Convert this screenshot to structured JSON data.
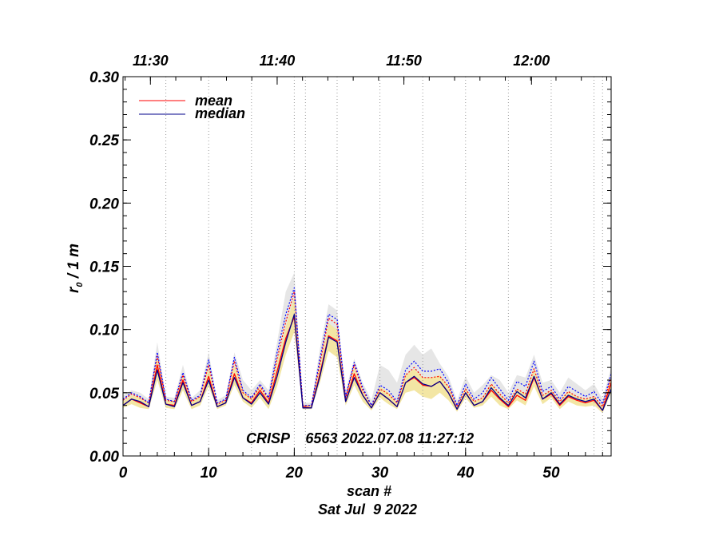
{
  "chart_data": {
    "type": "line",
    "title": "",
    "xlabel": "scan #",
    "ylabel": "r₀ / 1 m",
    "ylabel_main": "r",
    "ylabel_sub": "0",
    "ylabel_rest": " / 1 m",
    "xlim": [
      0,
      57
    ],
    "ylim": [
      0,
      0.3
    ],
    "x_ticks": [
      0,
      10,
      20,
      30,
      40,
      50
    ],
    "y_ticks": [
      0.0,
      0.05,
      0.1,
      0.15,
      0.2,
      0.25,
      0.3
    ],
    "y_tick_labels": [
      "0.00",
      "0.05",
      "0.10",
      "0.15",
      "0.20",
      "0.25",
      "0.30"
    ],
    "top_axis": {
      "labels": [
        "11:30",
        "11:40",
        "11:50",
        "12:00"
      ],
      "positions_scan": [
        3.2,
        18.0,
        32.8,
        47.7
      ]
    },
    "vertical_gridlines_scan": [
      5,
      10,
      15,
      20,
      21.3,
      25,
      30,
      35,
      40,
      45,
      50,
      55,
      56
    ],
    "legend": {
      "position": "top-left",
      "entries": [
        "mean",
        "median"
      ]
    },
    "series": [
      {
        "name": "mean",
        "color": "#ff0000",
        "x": [
          0,
          1,
          2,
          3,
          4,
          5,
          6,
          7,
          8,
          9,
          10,
          11,
          12,
          13,
          14,
          15,
          16,
          17,
          18,
          19,
          20,
          21,
          22,
          23,
          24,
          25,
          26,
          27,
          28,
          29,
          30,
          31,
          32,
          33,
          34,
          35,
          36,
          37,
          38,
          39,
          40,
          41,
          42,
          43,
          44,
          45,
          46,
          47,
          48,
          49,
          50,
          51,
          52,
          53,
          54,
          55,
          56,
          57
        ],
        "values": [
          0.04,
          0.045,
          0.042,
          0.039,
          0.072,
          0.041,
          0.04,
          0.06,
          0.04,
          0.043,
          0.063,
          0.039,
          0.042,
          0.065,
          0.046,
          0.042,
          0.052,
          0.042,
          0.067,
          0.093,
          0.11,
          0.039,
          0.038,
          0.065,
          0.095,
          0.091,
          0.043,
          0.065,
          0.048,
          0.038,
          0.05,
          0.045,
          0.039,
          0.058,
          0.062,
          0.056,
          0.055,
          0.059,
          0.05,
          0.037,
          0.05,
          0.04,
          0.043,
          0.052,
          0.045,
          0.039,
          0.048,
          0.044,
          0.062,
          0.045,
          0.049,
          0.04,
          0.047,
          0.044,
          0.042,
          0.044,
          0.036,
          0.058
        ]
      },
      {
        "name": "median",
        "color": "#00008b",
        "x": [
          0,
          1,
          2,
          3,
          4,
          5,
          6,
          7,
          8,
          9,
          10,
          11,
          12,
          13,
          14,
          15,
          16,
          17,
          18,
          19,
          20,
          21,
          22,
          23,
          24,
          25,
          26,
          27,
          28,
          29,
          30,
          31,
          32,
          33,
          34,
          35,
          36,
          37,
          38,
          39,
          40,
          41,
          42,
          43,
          44,
          45,
          46,
          47,
          48,
          49,
          50,
          51,
          52,
          53,
          54,
          55,
          56,
          57
        ],
        "values": [
          0.04,
          0.045,
          0.043,
          0.039,
          0.068,
          0.041,
          0.039,
          0.058,
          0.04,
          0.043,
          0.06,
          0.039,
          0.042,
          0.062,
          0.046,
          0.041,
          0.05,
          0.041,
          0.063,
          0.09,
          0.112,
          0.038,
          0.038,
          0.063,
          0.094,
          0.09,
          0.043,
          0.062,
          0.048,
          0.038,
          0.05,
          0.045,
          0.039,
          0.058,
          0.063,
          0.057,
          0.055,
          0.059,
          0.05,
          0.037,
          0.05,
          0.04,
          0.043,
          0.054,
          0.046,
          0.04,
          0.051,
          0.046,
          0.063,
          0.045,
          0.05,
          0.041,
          0.048,
          0.045,
          0.043,
          0.045,
          0.036,
          0.053
        ]
      },
      {
        "name": "mean + sigma (dotted)",
        "color": "#ff0000",
        "dash": true,
        "x": [
          0,
          1,
          2,
          3,
          4,
          5,
          6,
          7,
          8,
          9,
          10,
          11,
          12,
          13,
          14,
          15,
          16,
          17,
          18,
          19,
          20,
          21,
          22,
          23,
          24,
          25,
          26,
          27,
          28,
          29,
          30,
          31,
          32,
          33,
          34,
          35,
          36,
          37,
          38,
          39,
          40,
          41,
          42,
          43,
          44,
          45,
          46,
          47,
          48,
          49,
          50,
          51,
          52,
          53,
          54,
          55,
          56,
          57
        ],
        "values": [
          0.044,
          0.049,
          0.046,
          0.042,
          0.079,
          0.044,
          0.043,
          0.064,
          0.043,
          0.047,
          0.072,
          0.041,
          0.044,
          0.075,
          0.05,
          0.045,
          0.055,
          0.045,
          0.077,
          0.106,
          0.13,
          0.04,
          0.04,
          0.073,
          0.109,
          0.104,
          0.046,
          0.072,
          0.052,
          0.04,
          0.053,
          0.049,
          0.042,
          0.064,
          0.07,
          0.062,
          0.062,
          0.063,
          0.055,
          0.039,
          0.053,
          0.043,
          0.046,
          0.057,
          0.049,
          0.042,
          0.053,
          0.049,
          0.069,
          0.048,
          0.052,
          0.043,
          0.051,
          0.047,
          0.045,
          0.047,
          0.039,
          0.062
        ]
      },
      {
        "name": "median + sigma (dotted)",
        "color": "#0000ff",
        "dash": true,
        "x": [
          0,
          1,
          2,
          3,
          4,
          5,
          6,
          7,
          8,
          9,
          10,
          11,
          12,
          13,
          14,
          15,
          16,
          17,
          18,
          19,
          20,
          21,
          22,
          23,
          24,
          25,
          26,
          27,
          28,
          29,
          30,
          31,
          32,
          33,
          34,
          35,
          36,
          37,
          38,
          39,
          40,
          41,
          42,
          43,
          44,
          45,
          46,
          47,
          48,
          49,
          50,
          51,
          52,
          53,
          54,
          55,
          56,
          57
        ],
        "values": [
          0.045,
          0.05,
          0.047,
          0.042,
          0.082,
          0.045,
          0.043,
          0.066,
          0.044,
          0.048,
          0.076,
          0.042,
          0.045,
          0.078,
          0.052,
          0.046,
          0.057,
          0.046,
          0.082,
          0.112,
          0.133,
          0.04,
          0.04,
          0.077,
          0.112,
          0.108,
          0.047,
          0.074,
          0.054,
          0.04,
          0.056,
          0.052,
          0.043,
          0.068,
          0.075,
          0.067,
          0.067,
          0.069,
          0.058,
          0.04,
          0.057,
          0.045,
          0.05,
          0.062,
          0.053,
          0.044,
          0.059,
          0.055,
          0.075,
          0.051,
          0.055,
          0.045,
          0.055,
          0.051,
          0.047,
          0.051,
          0.041,
          0.065
        ]
      }
    ],
    "bands": [
      {
        "name": "median range",
        "color": "#e6e6e6",
        "x": [
          0,
          1,
          2,
          3,
          4,
          5,
          6,
          7,
          8,
          9,
          10,
          11,
          12,
          13,
          14,
          15,
          16,
          17,
          18,
          19,
          20,
          21,
          22,
          23,
          24,
          25,
          26,
          27,
          28,
          29,
          30,
          31,
          32,
          33,
          34,
          35,
          36,
          37,
          38,
          39,
          40,
          41,
          42,
          43,
          44,
          45,
          46,
          47,
          48,
          49,
          50,
          51,
          52,
          53,
          54,
          55,
          56,
          57
        ],
        "low": [
          0.04,
          0.044,
          0.042,
          0.039,
          0.065,
          0.04,
          0.039,
          0.056,
          0.04,
          0.042,
          0.058,
          0.039,
          0.041,
          0.06,
          0.045,
          0.04,
          0.049,
          0.04,
          0.06,
          0.088,
          0.11,
          0.038,
          0.038,
          0.061,
          0.092,
          0.088,
          0.042,
          0.06,
          0.047,
          0.038,
          0.049,
          0.044,
          0.039,
          0.057,
          0.061,
          0.055,
          0.054,
          0.058,
          0.049,
          0.037,
          0.049,
          0.04,
          0.042,
          0.052,
          0.045,
          0.039,
          0.049,
          0.045,
          0.061,
          0.044,
          0.049,
          0.04,
          0.047,
          0.044,
          0.042,
          0.044,
          0.036,
          0.052
        ],
        "high": [
          0.048,
          0.052,
          0.05,
          0.045,
          0.09,
          0.047,
          0.046,
          0.072,
          0.046,
          0.052,
          0.082,
          0.044,
          0.048,
          0.082,
          0.06,
          0.052,
          0.06,
          0.052,
          0.09,
          0.13,
          0.145,
          0.042,
          0.042,
          0.085,
          0.12,
          0.115,
          0.052,
          0.077,
          0.058,
          0.044,
          0.072,
          0.068,
          0.058,
          0.08,
          0.088,
          0.08,
          0.085,
          0.073,
          0.063,
          0.044,
          0.063,
          0.05,
          0.056,
          0.064,
          0.06,
          0.05,
          0.064,
          0.062,
          0.08,
          0.058,
          0.06,
          0.05,
          0.062,
          0.057,
          0.052,
          0.057,
          0.045,
          0.07
        ]
      },
      {
        "name": "mean range",
        "color": "#f3e6a4",
        "x": [
          0,
          1,
          2,
          3,
          4,
          5,
          6,
          7,
          8,
          9,
          10,
          11,
          12,
          13,
          14,
          15,
          16,
          17,
          18,
          19,
          20,
          21,
          22,
          23,
          24,
          25,
          26,
          27,
          28,
          29,
          30,
          31,
          32,
          33,
          34,
          35,
          36,
          37,
          38,
          39,
          40,
          41,
          42,
          43,
          44,
          45,
          46,
          47,
          48,
          49,
          50,
          51,
          52,
          53,
          54,
          55,
          56,
          57
        ],
        "low": [
          0.038,
          0.041,
          0.038,
          0.037,
          0.06,
          0.038,
          0.037,
          0.052,
          0.037,
          0.04,
          0.055,
          0.037,
          0.04,
          0.056,
          0.043,
          0.038,
          0.046,
          0.037,
          0.055,
          0.08,
          0.098,
          0.037,
          0.037,
          0.058,
          0.083,
          0.078,
          0.04,
          0.056,
          0.043,
          0.036,
          0.046,
          0.041,
          0.037,
          0.05,
          0.052,
          0.047,
          0.045,
          0.05,
          0.044,
          0.035,
          0.046,
          0.038,
          0.04,
          0.047,
          0.04,
          0.037,
          0.044,
          0.04,
          0.055,
          0.041,
          0.046,
          0.037,
          0.043,
          0.04,
          0.039,
          0.04,
          0.034,
          0.05
        ],
        "high": [
          0.043,
          0.048,
          0.046,
          0.042,
          0.078,
          0.044,
          0.043,
          0.064,
          0.043,
          0.047,
          0.07,
          0.041,
          0.044,
          0.072,
          0.051,
          0.045,
          0.055,
          0.045,
          0.075,
          0.102,
          0.126,
          0.04,
          0.04,
          0.072,
          0.105,
          0.1,
          0.046,
          0.07,
          0.052,
          0.04,
          0.055,
          0.05,
          0.042,
          0.064,
          0.069,
          0.062,
          0.062,
          0.064,
          0.055,
          0.039,
          0.054,
          0.043,
          0.046,
          0.057,
          0.049,
          0.042,
          0.053,
          0.049,
          0.069,
          0.048,
          0.052,
          0.043,
          0.051,
          0.047,
          0.045,
          0.047,
          0.039,
          0.062
        ]
      }
    ],
    "annotation": "CRISP    6563 2022.07.08 11:27:12",
    "date_label": "Sat Jul  9 2022"
  }
}
